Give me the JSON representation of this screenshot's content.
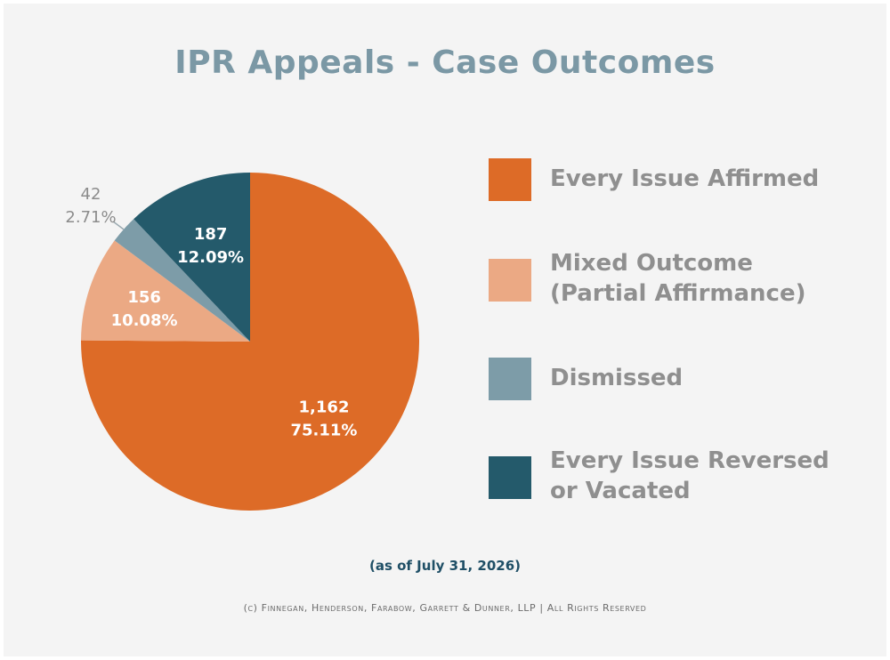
{
  "chart_data": {
    "type": "pie",
    "title": "IPR Appeals - Case Outcomes",
    "subtitle": "(as of July 31, 2026)",
    "footer": "(c) Finnegan, Henderson, Farabow, Garrett & Dunner, LLP | All Rights Reserved",
    "legend_position": "right",
    "slices": [
      {
        "name": "Every Issue Affirmed",
        "value": 1162,
        "value_label": "1,162",
        "percent_label": "75.11%",
        "color": "#dd6b27"
      },
      {
        "name": "Mixed Outcome\n(Partial Affirmance)",
        "value": 156,
        "value_label": "156",
        "percent_label": "10.08%",
        "color": "#eba984"
      },
      {
        "name": "Dismissed",
        "value": 42,
        "value_label": "42",
        "percent_label": "2.71%",
        "color": "#7d9ca8"
      },
      {
        "name": "Every Issue Reversed\nor Vacated",
        "value": 187,
        "value_label": "187",
        "percent_label": "12.09%",
        "color": "#245a6b"
      }
    ]
  }
}
